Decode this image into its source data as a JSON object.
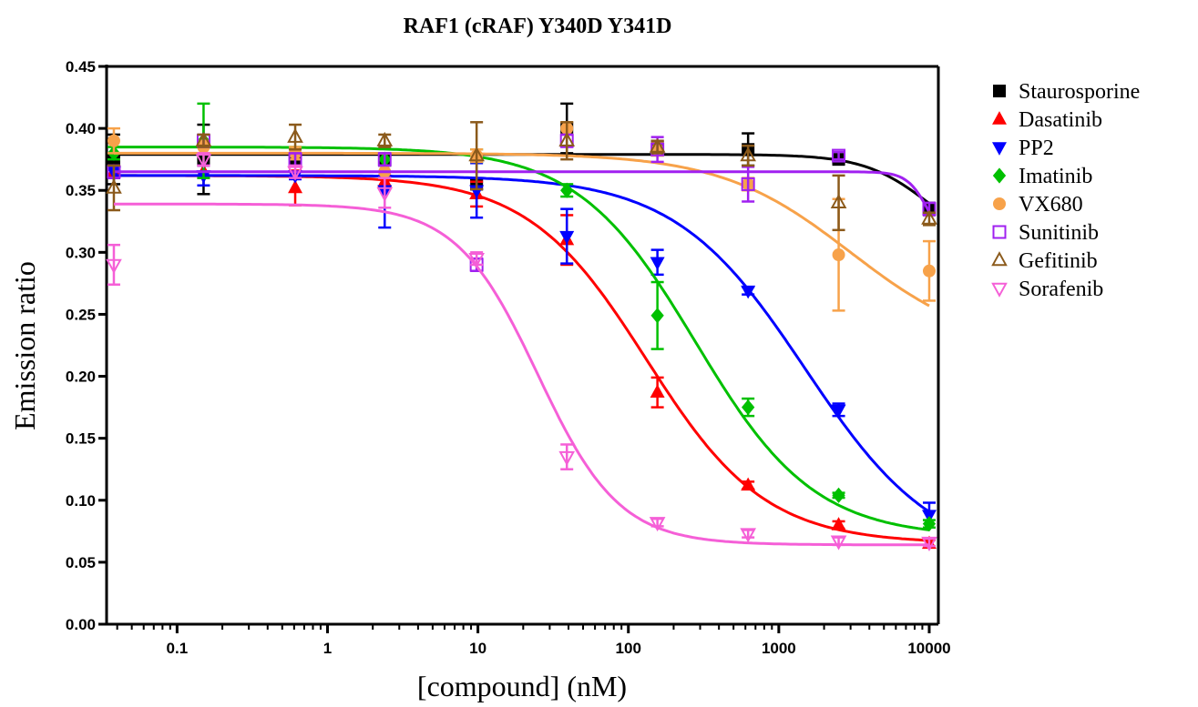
{
  "chart_data": {
    "type": "scatter",
    "title": "RAF1 (cRAF) Y340D Y341D",
    "x_label": "[compound] (nM)",
    "y_label": "Emission ratio",
    "x_scale": "log",
    "x": [
      0.038,
      0.15,
      0.61,
      2.4,
      9.8,
      39,
      156,
      625,
      2500,
      10000
    ],
    "xlim": [
      0.034,
      11500
    ],
    "xticks": [
      0.1,
      1,
      10,
      100,
      1000,
      10000
    ],
    "ylim": [
      0,
      0.45
    ],
    "yticks": [
      {
        "value": 0,
        "label": "0.00"
      },
      {
        "value": 0.05,
        "label": "0.05"
      },
      {
        "value": 0.1,
        "label": "0.10"
      },
      {
        "value": 0.15,
        "label": "0.15"
      },
      {
        "value": 0.2,
        "label": "0.20"
      },
      {
        "value": 0.25,
        "label": "0.25"
      },
      {
        "value": 0.3,
        "label": "0.30"
      },
      {
        "value": 0.35,
        "label": "0.35"
      },
      {
        "value": 0.4,
        "label": "0.40"
      },
      {
        "value": 0.45,
        "label": "0.45"
      }
    ],
    "series": [
      {
        "name": "Staurosporine",
        "color": "#000000",
        "marker": "square",
        "filled": true,
        "values": [
          0.375,
          0.375,
          0.375,
          0.375,
          0.355,
          0.4,
          0.385,
          0.383,
          0.375,
          0.335
        ],
        "errors": [
          0.02,
          0.028,
          0.005,
          0.005,
          0.004,
          0.02,
          0.005,
          0.013,
          0.003,
          0.005
        ],
        "fit": {
          "top": 0.379,
          "bottom": 0.3,
          "ec50": 10000,
          "hill": 2
        }
      },
      {
        "name": "Dasatinib",
        "color": "#ff0000",
        "marker": "triangle-up",
        "filled": true,
        "values": [
          0.365,
          0.365,
          0.352,
          0.357,
          0.347,
          0.31,
          0.187,
          0.112,
          0.08,
          0.065
        ],
        "errors": [
          0.005,
          0.005,
          0.014,
          0.005,
          0.01,
          0.02,
          0.012,
          0.003,
          0.003,
          0.003
        ],
        "fit": {
          "top": 0.362,
          "bottom": 0.065,
          "ec50": 132,
          "hill": 1.1
        }
      },
      {
        "name": "PP2",
        "color": "#0000ff",
        "marker": "triangle-down",
        "filled": true,
        "values": [
          0.365,
          0.362,
          0.362,
          0.35,
          0.35,
          0.313,
          0.292,
          0.269,
          0.173,
          0.088
        ],
        "errors": [
          0.005,
          0.008,
          0.003,
          0.03,
          0.022,
          0.022,
          0.01,
          0.003,
          0.005,
          0.01
        ],
        "fit": {
          "top": 0.362,
          "bottom": 0.05,
          "ec50": 1500,
          "hill": 1
        }
      },
      {
        "name": "Imatinib",
        "color": "#00c000",
        "marker": "diamond",
        "filled": true,
        "values": [
          0.38,
          0.39,
          0.38,
          0.375,
          0.378,
          0.35,
          0.249,
          0.175,
          0.104,
          0.081
        ],
        "errors": [
          0.005,
          0.03,
          0.005,
          0.005,
          0.005,
          0.005,
          0.027,
          0.007,
          0.002,
          0.003
        ],
        "fit": {
          "top": 0.385,
          "bottom": 0.07,
          "ec50": 280,
          "hill": 1.1
        }
      },
      {
        "name": "VX680",
        "color": "#f7a24a",
        "marker": "circle",
        "filled": true,
        "values": [
          0.39,
          0.385,
          0.38,
          0.365,
          0.378,
          0.4,
          0.383,
          0.355,
          0.298,
          0.285
        ],
        "errors": [
          0.01,
          0.005,
          0.005,
          0.005,
          0.005,
          0.005,
          0.005,
          0.005,
          0.045,
          0.024
        ],
        "fit": {
          "top": 0.38,
          "bottom": 0.22,
          "ec50": 3000,
          "hill": 1
        }
      },
      {
        "name": "Sunitinib",
        "color": "#a020f0",
        "marker": "square",
        "filled": false,
        "values": [
          0.365,
          0.39,
          0.375,
          0.375,
          0.29,
          0.39,
          0.383,
          0.355,
          0.378,
          0.335
        ],
        "errors": [
          0.005,
          0.005,
          0.005,
          0.005,
          0.005,
          0.005,
          0.01,
          0.014,
          0.003,
          0.005
        ],
        "fit": {
          "top": 0.365,
          "bottom": 0.3,
          "ec50": 10000,
          "hill": 6
        }
      },
      {
        "name": "Gefitinib",
        "color": "#8b5a1b",
        "marker": "triangle-up",
        "filled": false,
        "values": [
          0.352,
          0.39,
          0.393,
          0.39,
          0.378,
          0.39,
          0.385,
          0.378,
          0.34,
          0.327
        ],
        "errors": [
          0.018,
          0.005,
          0.01,
          0.005,
          0.027,
          0.015,
          0.005,
          0.008,
          0.022,
          0.005
        ]
      },
      {
        "name": "Sorafenib",
        "color": "#f55fd7",
        "marker": "triangle-down",
        "filled": false,
        "values": [
          0.29,
          0.375,
          0.365,
          0.348,
          0.295,
          0.135,
          0.082,
          0.073,
          0.067,
          0.066
        ],
        "errors": [
          0.016,
          0.005,
          0.005,
          0.012,
          0.005,
          0.01,
          0.003,
          0.003,
          0.003,
          0.003
        ],
        "fit": {
          "top": 0.339,
          "bottom": 0.064,
          "ec50": 25,
          "hill": 1.6
        }
      }
    ]
  }
}
